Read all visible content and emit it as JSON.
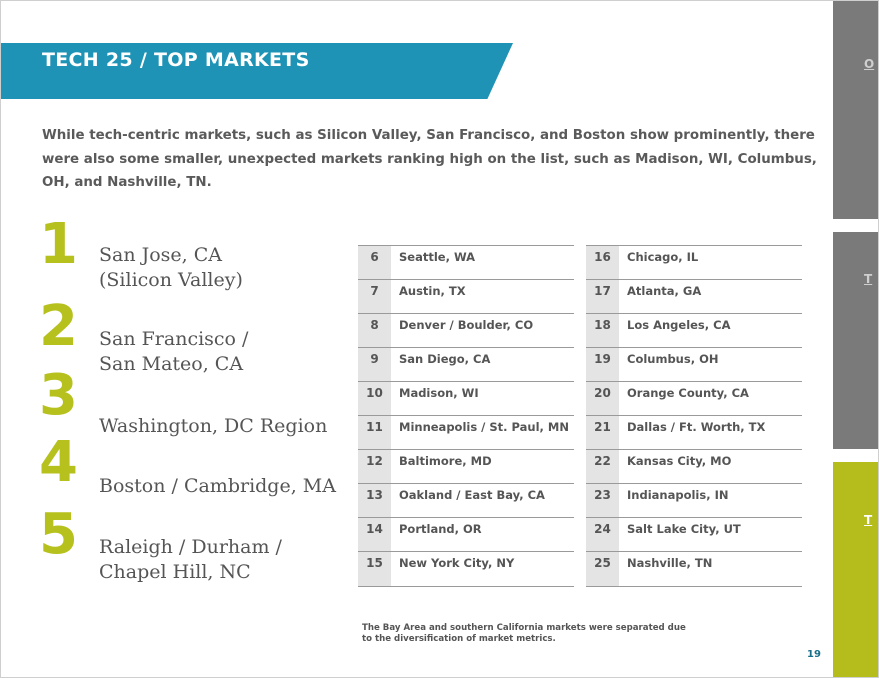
{
  "header": {
    "title": "TECH 25 / TOP MARKETS"
  },
  "intro": "While tech-centric markets, such as Silicon Valley, San Francisco, and Boston show prominently, there were also some smaller, unexpected markets ranking high on the list, such as Madison, WI, Columbus, OH, and Nashville, TN.",
  "top5": [
    {
      "rank": "1",
      "line1": "San Jose, CA",
      "line2": "(Silicon Valley)"
    },
    {
      "rank": "2",
      "line1": "San Francisco /",
      "line2": "San Mateo, CA"
    },
    {
      "rank": "3",
      "line1": "Washington, DC Region",
      "line2": ""
    },
    {
      "rank": "4",
      "line1": "Boston / Cambridge, MA",
      "line2": ""
    },
    {
      "rank": "5",
      "line1": "Raleigh / Durham /",
      "line2": "Chapel Hill, NC"
    }
  ],
  "table_left": [
    {
      "rank": "6",
      "city": "Seattle, WA"
    },
    {
      "rank": "7",
      "city": "Austin, TX"
    },
    {
      "rank": "8",
      "city": "Denver / Boulder, CO"
    },
    {
      "rank": "9",
      "city": "San Diego, CA"
    },
    {
      "rank": "10",
      "city": "Madison, WI"
    },
    {
      "rank": "11",
      "city": "Minneapolis / St. Paul, MN"
    },
    {
      "rank": "12",
      "city": "Baltimore, MD"
    },
    {
      "rank": "13",
      "city": "Oakland / East Bay, CA"
    },
    {
      "rank": "14",
      "city": "Portland, OR"
    },
    {
      "rank": "15",
      "city": "New York City, NY"
    }
  ],
  "table_right": [
    {
      "rank": "16",
      "city": "Chicago, IL"
    },
    {
      "rank": "17",
      "city": "Atlanta, GA"
    },
    {
      "rank": "18",
      "city": "Los Angeles, CA"
    },
    {
      "rank": "19",
      "city": "Columbus, OH"
    },
    {
      "rank": "20",
      "city": "Orange County, CA"
    },
    {
      "rank": "21",
      "city": "Dallas / Ft. Worth, TX"
    },
    {
      "rank": "22",
      "city": "Kansas City, MO"
    },
    {
      "rank": "23",
      "city": "Indianapolis, IN"
    },
    {
      "rank": "24",
      "city": "Salt Lake City, UT"
    },
    {
      "rank": "25",
      "city": "Nashville, TN"
    }
  ],
  "note": "The Bay Area and southern California markets were separated due to the diversification of market metrics.",
  "page_number": "19",
  "side_tabs": [
    {
      "letter": "O",
      "color": "#7a7a7a"
    },
    {
      "letter": "T",
      "color": "#7a7a7a"
    },
    {
      "letter": "T",
      "color": "#b4bd1c"
    }
  ]
}
